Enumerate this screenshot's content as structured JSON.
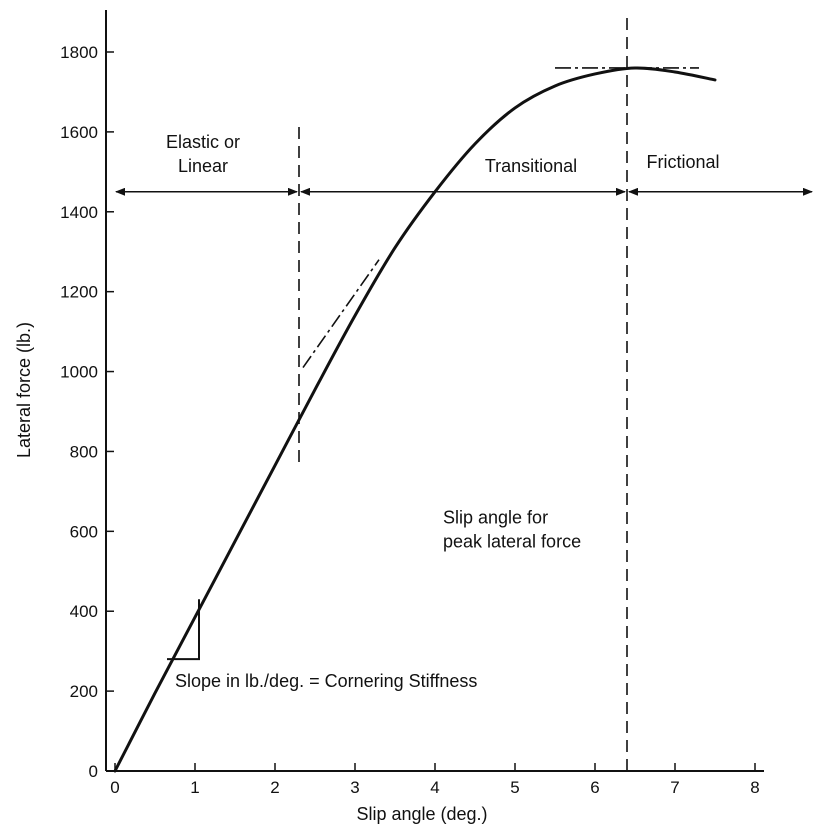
{
  "chart_data": {
    "type": "line",
    "xlabel": "Slip angle (deg.)",
    "ylabel": "Lateral force (lb.)",
    "xlim": [
      0,
      8
    ],
    "ylim": [
      0,
      1800
    ],
    "x_ticks": [
      0,
      1,
      2,
      3,
      4,
      5,
      6,
      7,
      8
    ],
    "y_ticks": [
      0,
      200,
      400,
      600,
      800,
      1000,
      1200,
      1400,
      1600,
      1800
    ],
    "grid": false,
    "legend": "none",
    "series": [
      {
        "x": [
          0,
          0.5,
          1.0,
          1.5,
          2.0,
          2.5,
          3.0,
          3.5,
          4.0,
          4.5,
          5.0,
          5.5,
          6.0,
          6.5,
          7.0,
          7.5
        ],
        "y": [
          0,
          195,
          385,
          575,
          765,
          955,
          1140,
          1310,
          1450,
          1570,
          1660,
          1715,
          1745,
          1760,
          1750,
          1730
        ]
      }
    ],
    "region_boundaries_x": [
      2.3,
      6.4
    ],
    "region_arrow_y": 1450,
    "peak_line": {
      "x": [
        5.5,
        7.3
      ],
      "y": 1760
    },
    "tangent_line": {
      "x": [
        2.35,
        3.3
      ],
      "y": [
        1010,
        1280
      ]
    },
    "slope_triangle": {
      "x": [
        0.65,
        1.05
      ],
      "y": [
        280,
        430
      ]
    },
    "annotations": [
      {
        "text": "Elastic or",
        "x": 1.1,
        "y": 1560
      },
      {
        "text": "Linear",
        "x": 1.1,
        "y": 1500
      },
      {
        "text": "Transitional",
        "x": 5.2,
        "y": 1500
      },
      {
        "text": "Frictional",
        "x": 7.1,
        "y": 1510
      },
      {
        "text": "Slip angle for",
        "x": 4.1,
        "y": 620
      },
      {
        "text": "peak lateral force",
        "x": 4.1,
        "y": 560
      },
      {
        "text": "Slope in lb./deg. = Cornering Stiffness",
        "x": 0.75,
        "y": 210
      }
    ]
  }
}
